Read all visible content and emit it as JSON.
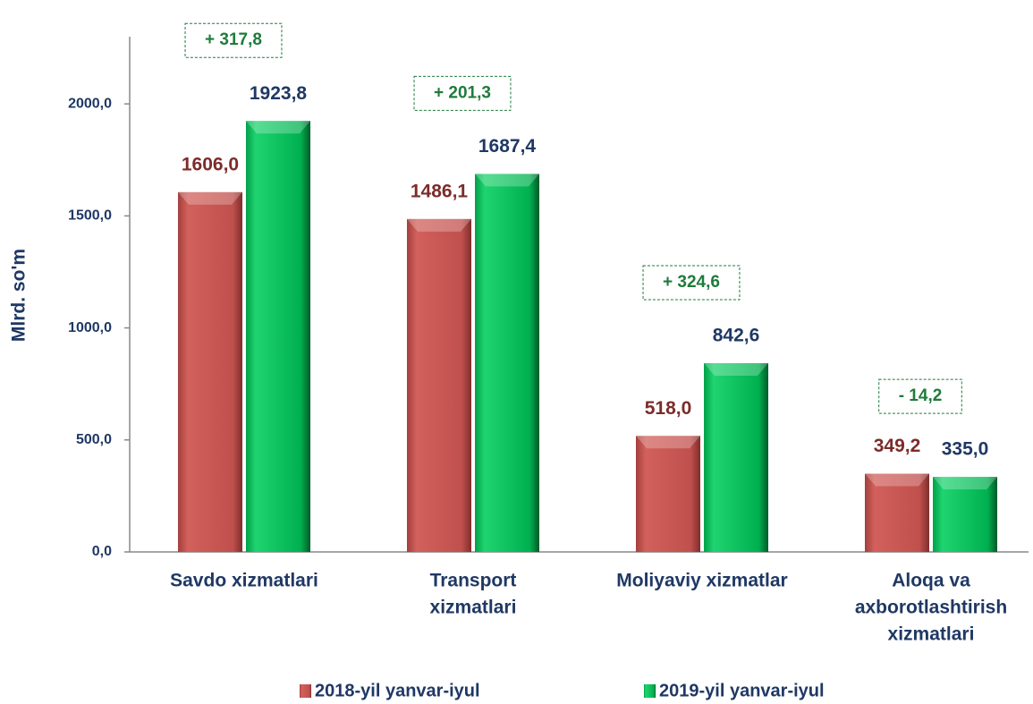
{
  "chart_data": {
    "type": "bar",
    "y_axis_label": "Mlrd. so'm",
    "categories": [
      [
        "Savdo xizmatlari"
      ],
      [
        "Transport",
        "xizmatlari"
      ],
      [
        "Moliyaviy xizmatlar"
      ],
      [
        "Aloqa va",
        "axborotlashtirish",
        "xizmatlari"
      ]
    ],
    "series": [
      {
        "name": "2018-yil yanvar-iyul",
        "color": "#c0504d",
        "values": [
          1606.0,
          1486.1,
          518.0,
          349.2
        ],
        "value_labels": [
          "1606,0",
          "1486,1",
          "518,0",
          "349,2"
        ]
      },
      {
        "name": "2019-yil yanvar-iyul",
        "color": "#00b050",
        "values": [
          1923.8,
          1687.4,
          842.6,
          335.0
        ],
        "value_labels": [
          "1923,8",
          "1687,4",
          "842,6",
          "335,0"
        ]
      }
    ],
    "differences": [
      "+ 317,8",
      "+ 201,3",
      "+ 324,6",
      "- 14,2"
    ],
    "ylim": [
      0,
      2300
    ],
    "yticks": [
      {
        "value": 0,
        "label": "0,0"
      },
      {
        "value": 500,
        "label": "500,0"
      },
      {
        "value": 1000,
        "label": "1000,0"
      },
      {
        "value": 1500,
        "label": "1500,0"
      },
      {
        "value": 2000,
        "label": "2000,0"
      }
    ]
  }
}
